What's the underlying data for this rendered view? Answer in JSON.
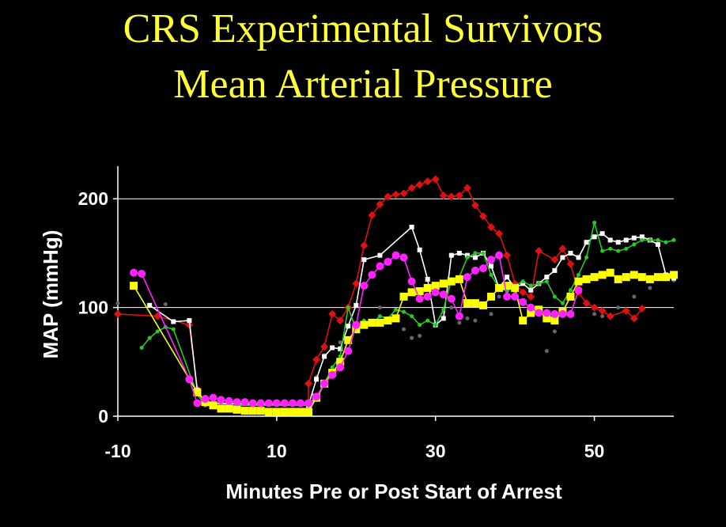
{
  "title_line1": "CRS Experimental Survivors",
  "title_line2": "Mean Arterial Pressure",
  "colors": {
    "background": "#000000",
    "title": "#ffff33",
    "axis": "#ffffff",
    "red": "#dd1111",
    "white": "#ffffff",
    "green": "#22cc22",
    "yellow": "#ffff00",
    "magenta": "#ff22ff",
    "gray": "#666666"
  },
  "chart_data": {
    "type": "line",
    "xlabel": "Minutes Pre or Post Start of Arrest",
    "ylabel": "MAP (mmHg)",
    "xlim": [
      -10,
      60
    ],
    "ylim": [
      0,
      230
    ],
    "x_ticks": [
      -10,
      10,
      30,
      50
    ],
    "y_ticks": [
      0,
      100,
      200
    ],
    "grid": "horizontal",
    "series": [
      {
        "color_key": "gray",
        "marker": "circle-small",
        "line": false,
        "points": [
          [
            -10,
            104
          ],
          [
            -4,
            103
          ],
          [
            0,
            22
          ],
          [
            1,
            10
          ],
          [
            14,
            10
          ],
          [
            15,
            36
          ],
          [
            16,
            56
          ],
          [
            18,
            68
          ],
          [
            19,
            82
          ],
          [
            20,
            78
          ],
          [
            21,
            86
          ],
          [
            23,
            100
          ],
          [
            24,
            88
          ],
          [
            26,
            80
          ],
          [
            27,
            72
          ],
          [
            28,
            74
          ],
          [
            30,
            84
          ],
          [
            31,
            96
          ],
          [
            32,
            100
          ],
          [
            33,
            86
          ],
          [
            34,
            90
          ],
          [
            35,
            88
          ],
          [
            37,
            94
          ],
          [
            38,
            110
          ],
          [
            40,
            114
          ],
          [
            42,
            120
          ],
          [
            43,
            100
          ],
          [
            44,
            60
          ],
          [
            45,
            78
          ],
          [
            46,
            96
          ],
          [
            50,
            94
          ],
          [
            51,
            92
          ],
          [
            53,
            100
          ],
          [
            55,
            110
          ],
          [
            57,
            118
          ],
          [
            59,
            126
          ],
          [
            60,
            125
          ]
        ]
      },
      {
        "color_key": "red",
        "marker": "diamond",
        "line": true,
        "points": [
          [
            -10,
            94
          ],
          [
            -5,
            92
          ],
          [
            -1,
            84
          ],
          [
            0,
            25
          ],
          [
            1,
            12
          ],
          [
            14,
            12
          ],
          [
            14,
            30
          ],
          [
            15,
            52
          ],
          [
            16,
            64
          ],
          [
            17,
            94
          ],
          [
            18,
            88
          ],
          [
            19,
            100
          ],
          [
            20,
            122
          ],
          [
            21,
            157
          ],
          [
            22,
            185
          ],
          [
            23,
            195
          ],
          [
            24,
            202
          ],
          [
            25,
            204
          ],
          [
            26,
            205
          ],
          [
            27,
            210
          ],
          [
            28,
            213
          ],
          [
            29,
            216
          ],
          [
            30,
            218
          ],
          [
            31,
            203
          ],
          [
            32,
            202
          ],
          [
            33,
            203
          ],
          [
            34,
            210
          ],
          [
            35,
            194
          ],
          [
            36,
            184
          ],
          [
            37,
            174
          ],
          [
            38,
            168
          ],
          [
            39,
            148
          ],
          [
            40,
            122
          ],
          [
            41,
            114
          ],
          [
            42,
            110
          ],
          [
            43,
            152
          ],
          [
            45,
            144
          ],
          [
            46,
            154
          ],
          [
            47,
            140
          ],
          [
            48,
            114
          ],
          [
            49,
            104
          ],
          [
            50,
            100
          ],
          [
            51,
            97
          ],
          [
            52,
            92
          ],
          [
            54,
            97
          ],
          [
            55,
            90
          ],
          [
            56,
            99
          ]
        ]
      },
      {
        "color_key": "white",
        "marker": "square-small",
        "line": true,
        "points": [
          [
            -6,
            102
          ],
          [
            -3,
            87
          ],
          [
            -1,
            88
          ],
          [
            0,
            24
          ],
          [
            1,
            12
          ],
          [
            14,
            10
          ],
          [
            15,
            34
          ],
          [
            16,
            55
          ],
          [
            17,
            63
          ],
          [
            18,
            62
          ],
          [
            19,
            83
          ],
          [
            20,
            102
          ],
          [
            21,
            144
          ],
          [
            23,
            148
          ],
          [
            27,
            174
          ],
          [
            28,
            153
          ],
          [
            29,
            126
          ],
          [
            30,
            84
          ],
          [
            31,
            90
          ],
          [
            32,
            148
          ],
          [
            33,
            150
          ],
          [
            34,
            148
          ],
          [
            35,
            146
          ],
          [
            36,
            150
          ],
          [
            37,
            138
          ],
          [
            38,
            118
          ],
          [
            39,
            128
          ],
          [
            40,
            118
          ],
          [
            41,
            122
          ],
          [
            42,
            116
          ],
          [
            43,
            122
          ],
          [
            44,
            128
          ],
          [
            45,
            134
          ],
          [
            46,
            146
          ],
          [
            47,
            150
          ],
          [
            48,
            146
          ],
          [
            49,
            160
          ],
          [
            50,
            165
          ],
          [
            51,
            168
          ],
          [
            52,
            162
          ],
          [
            53,
            160
          ],
          [
            54,
            162
          ],
          [
            55,
            164
          ],
          [
            56,
            165
          ],
          [
            57,
            162
          ],
          [
            58,
            158
          ],
          [
            59,
            130
          ],
          [
            60,
            127
          ]
        ]
      },
      {
        "color_key": "green",
        "marker": "circle-small",
        "line": true,
        "points": [
          [
            -7,
            63
          ],
          [
            -6,
            72
          ],
          [
            -5,
            78
          ],
          [
            -4,
            82
          ],
          [
            -3,
            80
          ],
          [
            0,
            20
          ],
          [
            1,
            10
          ],
          [
            14,
            10
          ],
          [
            15,
            15
          ],
          [
            16,
            30
          ],
          [
            17,
            45
          ],
          [
            18,
            55
          ],
          [
            19,
            100
          ],
          [
            20,
            80
          ],
          [
            21,
            88
          ],
          [
            22,
            85
          ],
          [
            23,
            92
          ],
          [
            24,
            90
          ],
          [
            25,
            98
          ],
          [
            26,
            96
          ],
          [
            27,
            92
          ],
          [
            28,
            84
          ],
          [
            29,
            88
          ],
          [
            30,
            84
          ],
          [
            31,
            98
          ],
          [
            32,
            126
          ],
          [
            33,
            128
          ],
          [
            34,
            146
          ],
          [
            35,
            150
          ],
          [
            36,
            150
          ],
          [
            37,
            130
          ],
          [
            38,
            118
          ],
          [
            39,
            115
          ],
          [
            40,
            120
          ],
          [
            41,
            124
          ],
          [
            42,
            120
          ],
          [
            43,
            122
          ],
          [
            44,
            124
          ],
          [
            45,
            110
          ],
          [
            46,
            104
          ],
          [
            47,
            116
          ],
          [
            48,
            130
          ],
          [
            49,
            146
          ],
          [
            50,
            178
          ],
          [
            51,
            152
          ],
          [
            52,
            154
          ],
          [
            53,
            152
          ],
          [
            54,
            154
          ],
          [
            55,
            158
          ],
          [
            56,
            162
          ],
          [
            57,
            162
          ],
          [
            58,
            162
          ],
          [
            59,
            160
          ],
          [
            60,
            162
          ]
        ]
      },
      {
        "color_key": "yellow",
        "marker": "square-large",
        "line": true,
        "points": [
          [
            -8,
            120
          ],
          [
            0,
            22
          ],
          [
            1,
            13
          ],
          [
            2,
            10
          ],
          [
            3,
            7
          ],
          [
            4,
            7
          ],
          [
            5,
            6
          ],
          [
            6,
            5
          ],
          [
            7,
            5
          ],
          [
            8,
            5
          ],
          [
            9,
            4
          ],
          [
            10,
            4
          ],
          [
            11,
            4
          ],
          [
            12,
            4
          ],
          [
            13,
            4
          ],
          [
            14,
            4
          ],
          [
            15,
            17
          ],
          [
            16,
            30
          ],
          [
            17,
            40
          ],
          [
            18,
            50
          ],
          [
            19,
            70
          ],
          [
            20,
            80
          ],
          [
            21,
            84
          ],
          [
            22,
            86
          ],
          [
            23,
            86
          ],
          [
            24,
            88
          ],
          [
            25,
            90
          ],
          [
            26,
            110
          ],
          [
            27,
            114
          ],
          [
            28,
            115
          ],
          [
            29,
            118
          ],
          [
            30,
            120
          ],
          [
            31,
            122
          ],
          [
            32,
            124
          ],
          [
            33,
            126
          ],
          [
            34,
            104
          ],
          [
            35,
            104
          ],
          [
            36,
            102
          ],
          [
            37,
            110
          ],
          [
            38,
            118
          ],
          [
            39,
            120
          ],
          [
            40,
            118
          ],
          [
            41,
            88
          ],
          [
            42,
            95
          ],
          [
            43,
            98
          ],
          [
            44,
            90
          ],
          [
            45,
            88
          ],
          [
            46,
            96
          ],
          [
            47,
            110
          ],
          [
            48,
            124
          ],
          [
            49,
            126
          ],
          [
            50,
            128
          ],
          [
            51,
            130
          ],
          [
            52,
            132
          ],
          [
            53,
            126
          ],
          [
            54,
            128
          ],
          [
            55,
            130
          ],
          [
            56,
            128
          ],
          [
            57,
            126
          ],
          [
            58,
            128
          ],
          [
            59,
            128
          ],
          [
            60,
            130
          ]
        ]
      },
      {
        "color_key": "magenta",
        "marker": "circle-large",
        "line": true,
        "points": [
          [
            -8,
            132
          ],
          [
            -7,
            131
          ],
          [
            -1,
            34
          ],
          [
            0,
            12
          ],
          [
            1,
            16
          ],
          [
            2,
            17
          ],
          [
            3,
            15
          ],
          [
            4,
            14
          ],
          [
            5,
            13
          ],
          [
            6,
            13
          ],
          [
            7,
            12
          ],
          [
            8,
            12
          ],
          [
            9,
            12
          ],
          [
            10,
            12
          ],
          [
            11,
            12
          ],
          [
            12,
            12
          ],
          [
            13,
            12
          ],
          [
            14,
            12
          ],
          [
            15,
            18
          ],
          [
            16,
            30
          ],
          [
            17,
            38
          ],
          [
            18,
            45
          ],
          [
            19,
            60
          ],
          [
            20,
            84
          ],
          [
            21,
            120
          ],
          [
            22,
            130
          ],
          [
            23,
            138
          ],
          [
            24,
            142
          ],
          [
            25,
            148
          ],
          [
            26,
            146
          ],
          [
            27,
            124
          ],
          [
            28,
            108
          ],
          [
            29,
            110
          ],
          [
            30,
            114
          ],
          [
            31,
            112
          ],
          [
            32,
            108
          ],
          [
            33,
            92
          ],
          [
            34,
            128
          ],
          [
            35,
            134
          ],
          [
            36,
            136
          ],
          [
            37,
            144
          ],
          [
            38,
            148
          ],
          [
            39,
            110
          ],
          [
            40,
            110
          ],
          [
            41,
            105
          ],
          [
            42,
            100
          ],
          [
            43,
            95
          ],
          [
            44,
            95
          ],
          [
            45,
            94
          ],
          [
            46,
            94
          ],
          [
            47,
            94
          ],
          [
            48,
            116
          ]
        ]
      }
    ]
  }
}
